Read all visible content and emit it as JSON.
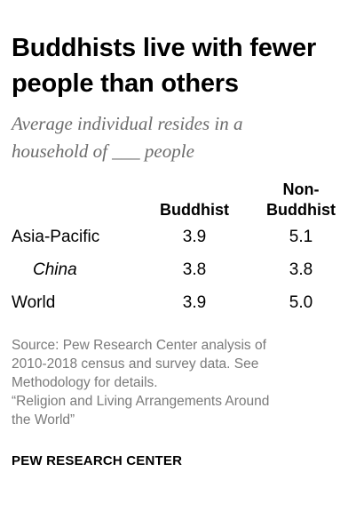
{
  "title_lines": [
    "Buddhists live with fewer",
    "people than others"
  ],
  "subtitle_lines": [
    "Average individual resides in a",
    "household of ___ people"
  ],
  "chart_data": {
    "type": "table",
    "columns": [
      "Buddhist",
      "Non-Buddhist"
    ],
    "column_header_lines": [
      [
        "Buddhist"
      ],
      [
        "Non-",
        "Buddhist"
      ]
    ],
    "rows": [
      {
        "label": "Asia-Pacific",
        "values": [
          "3.9",
          "5.1"
        ],
        "indent": false
      },
      {
        "label": "China",
        "values": [
          "3.8",
          "3.8"
        ],
        "indent": true
      },
      {
        "label": "World",
        "values": [
          "3.9",
          "5.0"
        ],
        "indent": false
      }
    ]
  },
  "source_lines": [
    "Source: Pew Research Center analysis of",
    "2010-2018 census and survey data. See",
    "Methodology for details.",
    "“Religion and Living Arrangements Around",
    "the World”"
  ],
  "brand": "PEW RESEARCH CENTER"
}
